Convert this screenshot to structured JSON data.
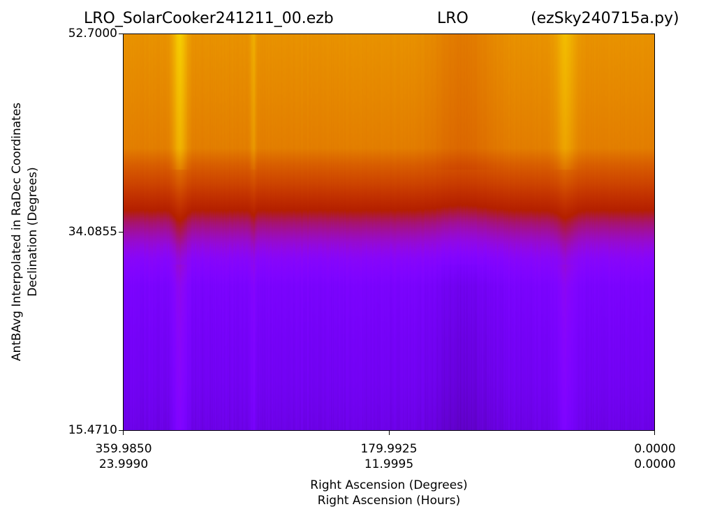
{
  "chart_data": {
    "type": "heatmap",
    "title_parts": [
      "LRO_SolarCooker241211_00.ezb",
      "LRO",
      "(ezSky240715a.py)"
    ],
    "xlabel_lines": [
      "Right Ascension (Degrees)",
      "Right Ascension (Hours)"
    ],
    "ylabel_lines": [
      "AntBAvg Interpolated in RaDec Coordinates",
      "Declination (Degrees)"
    ],
    "x_ticks": [
      {
        "deg": "359.9850",
        "hours": "23.9990",
        "value": 359.985
      },
      {
        "deg": "179.9925",
        "hours": "11.9995",
        "value": 179.9925
      },
      {
        "deg": "0.0000",
        "hours": "0.0000",
        "value": 0.0
      }
    ],
    "y_ticks": [
      {
        "label": "52.7000",
        "value": 52.7
      },
      {
        "label": "34.0855",
        "value": 34.0855
      },
      {
        "label": "15.4710",
        "value": 15.471
      }
    ],
    "xlim": [
      359.985,
      0.0
    ],
    "ylim": [
      15.471,
      52.7
    ],
    "colormap": "gnuplot",
    "colorbar": false,
    "grid": false,
    "declination_profile": {
      "dec": [
        52.7,
        47.0,
        42.0,
        40.5,
        38.6,
        37.0,
        35.0,
        33.0,
        31.5,
        29.0,
        24.0,
        20.0,
        15.471
      ],
      "intensity": [
        0.83,
        0.81,
        0.79,
        0.72,
        0.64,
        0.55,
        0.43,
        0.34,
        0.28,
        0.23,
        0.21,
        0.2,
        0.18
      ]
    },
    "ra_features": [
      {
        "ra": 322.0,
        "width": 5.0,
        "strength": 0.1,
        "note": "bright vertical band"
      },
      {
        "ra": 60.0,
        "width": 7.0,
        "strength": 0.07,
        "note": "bright vertical band"
      },
      {
        "ra": 272.0,
        "width": 2.0,
        "strength": 0.05,
        "note": "narrow bright column"
      },
      {
        "ra": 130.0,
        "width": 20.0,
        "strength": -0.05,
        "note": "darker lower region"
      }
    ]
  }
}
